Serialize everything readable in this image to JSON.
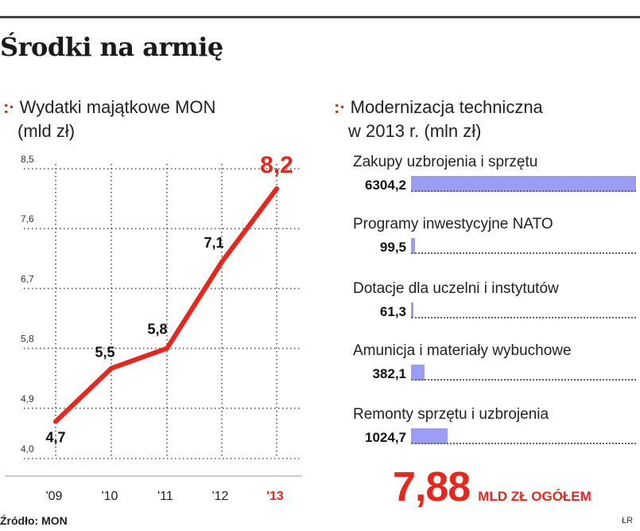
{
  "headline": "Środki na armię",
  "source": "Źródło: MON",
  "credit": "ŁR",
  "colors": {
    "accent": "#e4281e",
    "bar": "#9b9cf4",
    "text": "#222222"
  },
  "chart_data": [
    {
      "type": "line",
      "title_marker": ":·",
      "title_line1": "Wydatki majątkowe MON",
      "title_line2": "(mld zł)",
      "categories": [
        "'09",
        "'10",
        "'11",
        "'12",
        "'13"
      ],
      "values": [
        4.7,
        5.5,
        5.8,
        7.1,
        8.2
      ],
      "value_labels": [
        "4,7",
        "5,5",
        "5,8",
        "7,1",
        "8,2"
      ],
      "y_ticks": [
        {
          "value": 4.0,
          "label": "4,0"
        },
        {
          "value": 4.9,
          "label": "4,9"
        },
        {
          "value": 5.8,
          "label": "5,8"
        },
        {
          "value": 6.7,
          "label": "6,7"
        },
        {
          "value": 7.6,
          "label": "7,6"
        },
        {
          "value": 8.5,
          "label": "8,5"
        }
      ],
      "ylim": [
        4.0,
        8.5
      ],
      "grid": true,
      "highlight_last": true
    },
    {
      "type": "bar",
      "orientation": "horizontal",
      "title_marker": ":·",
      "title_line1": "Modernizacja techniczna",
      "title_line2": "w 2013 r. (mln zł)",
      "categories": [
        "Zakupy uzbrojenia i sprzętu",
        "Programy inwestycyjne NATO",
        "Dotacje dla uczelni i instytutów",
        "Amunicja i materiały wybuchowe",
        "Remonty sprzętu i uzbrojenia"
      ],
      "values": [
        6304.2,
        99.5,
        61.3,
        382.1,
        1024.7
      ],
      "value_labels": [
        "6304,2",
        "99,5",
        "61,3",
        "382,1",
        "1024,7"
      ],
      "total_value": "7,88",
      "total_label": "MLD ZŁ OGÓŁEM"
    }
  ]
}
